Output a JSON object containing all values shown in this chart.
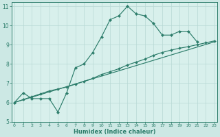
{
  "xlabel": "Humidex (Indice chaleur)",
  "x": [
    0,
    1,
    2,
    3,
    4,
    5,
    6,
    7,
    8,
    9,
    10,
    11,
    12,
    13,
    14,
    15,
    16,
    17,
    18,
    19,
    20,
    21,
    22,
    23
  ],
  "y_curve": [
    6.0,
    6.5,
    6.2,
    6.2,
    6.2,
    5.5,
    6.5,
    7.8,
    8.0,
    8.6,
    9.4,
    10.3,
    10.5,
    11.0,
    10.6,
    10.5,
    10.1,
    9.5,
    9.5,
    9.7,
    9.7,
    9.15,
    null,
    null
  ],
  "y_line1": [
    6.0,
    6.15,
    6.3,
    6.45,
    6.6,
    6.7,
    6.8,
    6.95,
    7.1,
    7.25,
    7.45,
    7.6,
    7.75,
    7.95,
    8.1,
    8.25,
    8.45,
    8.6,
    8.72,
    8.82,
    8.9,
    9.0,
    9.1,
    9.2
  ],
  "y_line2_x": [
    0,
    23
  ],
  "y_line2_y": [
    6.0,
    9.15
  ],
  "ylim": [
    5.0,
    11.2
  ],
  "yticks": [
    5,
    6,
    7,
    8,
    9,
    10,
    11
  ],
  "xlim": [
    -0.3,
    23.3
  ],
  "xticks": [
    0,
    1,
    2,
    3,
    4,
    5,
    6,
    7,
    8,
    9,
    10,
    11,
    12,
    13,
    14,
    15,
    16,
    17,
    18,
    19,
    20,
    21,
    22,
    23
  ],
  "line_color": "#2d7d6b",
  "bg_color": "#cce8e4",
  "plot_bg": "#d8f0ec",
  "grid_color": "#b8d8d4",
  "tick_color": "#2d7d6b"
}
